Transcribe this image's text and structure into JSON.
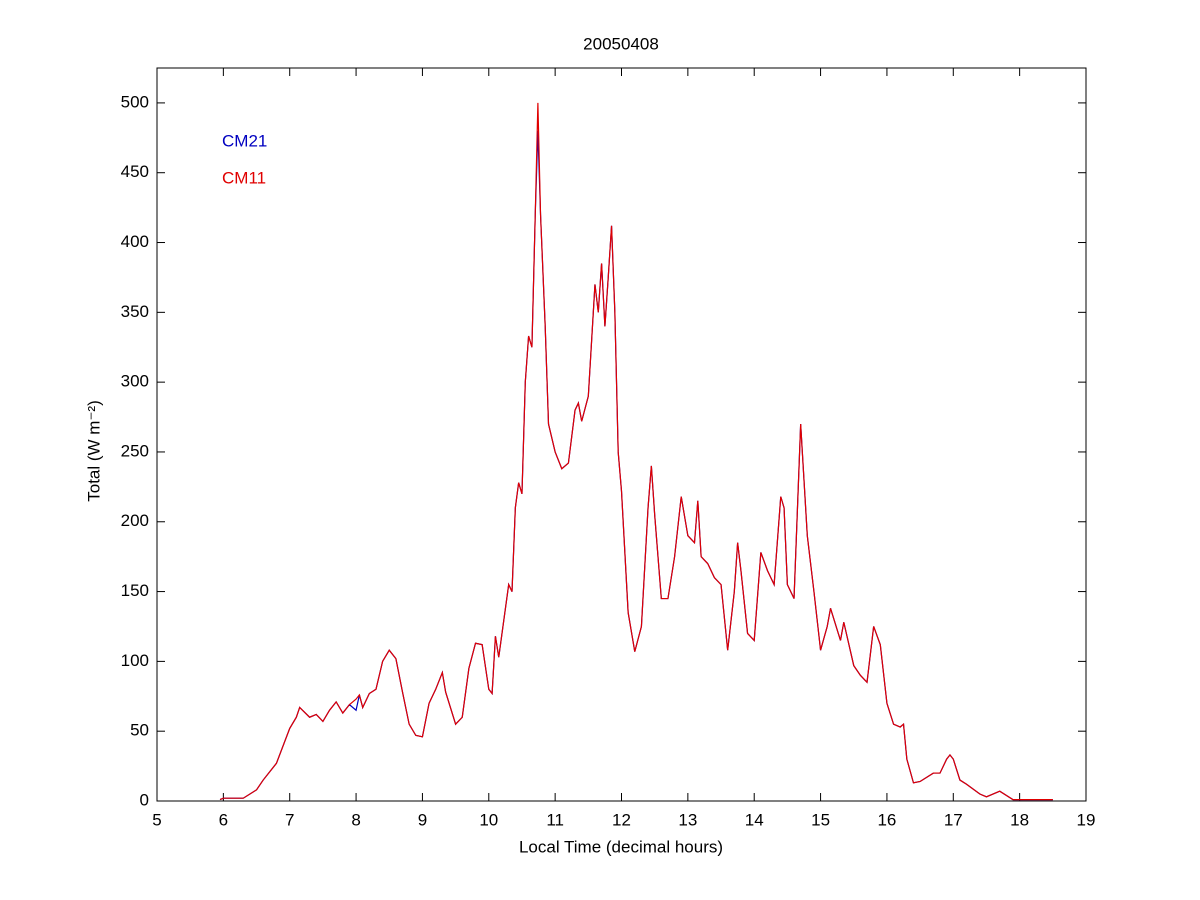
{
  "chart_data": {
    "type": "line",
    "title": "20050408",
    "xlabel": "Local Time (decimal hours)",
    "ylabel": "Total (W m⁻²)",
    "xlim": [
      5,
      19
    ],
    "xticks": [
      5,
      6,
      7,
      8,
      9,
      10,
      11,
      12,
      13,
      14,
      15,
      16,
      17,
      18,
      19
    ],
    "ylim": [
      0,
      525
    ],
    "yticks": [
      0,
      50,
      100,
      150,
      200,
      250,
      300,
      350,
      400,
      450,
      500
    ],
    "legend": "upper left",
    "x": [
      5.95,
      6.0,
      6.3,
      6.5,
      6.6,
      6.8,
      7.0,
      7.1,
      7.15,
      7.3,
      7.4,
      7.5,
      7.6,
      7.7,
      7.8,
      7.9,
      8.0,
      8.05,
      8.1,
      8.2,
      8.3,
      8.4,
      8.5,
      8.6,
      8.7,
      8.8,
      8.9,
      9.0,
      9.1,
      9.2,
      9.3,
      9.35,
      9.5,
      9.6,
      9.7,
      9.8,
      9.9,
      10.0,
      10.05,
      10.1,
      10.15,
      10.3,
      10.35,
      10.4,
      10.45,
      10.5,
      10.55,
      10.6,
      10.65,
      10.7,
      10.74,
      10.78,
      10.85,
      10.9,
      11.0,
      11.1,
      11.2,
      11.3,
      11.35,
      11.4,
      11.5,
      11.55,
      11.6,
      11.65,
      11.7,
      11.75,
      11.8,
      11.85,
      11.9,
      11.95,
      12.0,
      12.1,
      12.2,
      12.3,
      12.4,
      12.45,
      12.5,
      12.6,
      12.7,
      12.8,
      12.9,
      13.0,
      13.1,
      13.15,
      13.2,
      13.3,
      13.4,
      13.5,
      13.6,
      13.7,
      13.75,
      13.8,
      13.9,
      14.0,
      14.1,
      14.2,
      14.3,
      14.4,
      14.45,
      14.5,
      14.6,
      14.7,
      14.8,
      14.9,
      15.0,
      15.1,
      15.15,
      15.3,
      15.35,
      15.5,
      15.6,
      15.7,
      15.8,
      15.9,
      16.0,
      16.1,
      16.2,
      16.25,
      16.3,
      16.4,
      16.5,
      16.7,
      16.8,
      16.9,
      16.95,
      17.0,
      17.1,
      17.2,
      17.4,
      17.5,
      17.7,
      17.9,
      18.5
    ],
    "series": [
      {
        "name": "CM21",
        "color": "#0000c0",
        "values": [
          1,
          2,
          2,
          8,
          15,
          27,
          52,
          60,
          67,
          60,
          62,
          57,
          65,
          71,
          63,
          69,
          65,
          76,
          67,
          77,
          80,
          100,
          108,
          102,
          78,
          55,
          47,
          46,
          70,
          80,
          92,
          78,
          55,
          60,
          95,
          113,
          112,
          80,
          77,
          118,
          103,
          155,
          150,
          210,
          228,
          220,
          300,
          333,
          325,
          420,
          480,
          420,
          340,
          270,
          250,
          238,
          242,
          280,
          285,
          272,
          290,
          330,
          370,
          350,
          385,
          340,
          375,
          412,
          350,
          250,
          222,
          135,
          107,
          125,
          210,
          240,
          205,
          145,
          145,
          175,
          218,
          190,
          185,
          215,
          175,
          170,
          160,
          155,
          108,
          150,
          185,
          165,
          120,
          115,
          178,
          165,
          155,
          218,
          210,
          155,
          145,
          270,
          190,
          150,
          108,
          125,
          138,
          115,
          128,
          97,
          90,
          85,
          125,
          112,
          70,
          55,
          53,
          55,
          30,
          13,
          14,
          20,
          20,
          30,
          33,
          30,
          15,
          12,
          5,
          3,
          7,
          1,
          1
        ]
      },
      {
        "name": "CM11",
        "color": "#e00000",
        "values": [
          1,
          2,
          2,
          8,
          15,
          27,
          52,
          60,
          67,
          60,
          62,
          57,
          65,
          71,
          63,
          69,
          73,
          76,
          67,
          77,
          80,
          100,
          108,
          102,
          78,
          55,
          47,
          46,
          70,
          80,
          92,
          78,
          55,
          60,
          95,
          113,
          112,
          80,
          77,
          118,
          103,
          155,
          150,
          210,
          228,
          220,
          300,
          333,
          325,
          420,
          500,
          420,
          340,
          270,
          250,
          238,
          242,
          280,
          285,
          272,
          290,
          330,
          370,
          350,
          385,
          340,
          375,
          412,
          350,
          250,
          222,
          135,
          107,
          125,
          210,
          240,
          205,
          145,
          145,
          175,
          218,
          190,
          185,
          215,
          175,
          170,
          160,
          155,
          108,
          150,
          185,
          165,
          120,
          115,
          178,
          165,
          155,
          218,
          210,
          155,
          145,
          270,
          190,
          150,
          108,
          125,
          138,
          115,
          128,
          97,
          90,
          85,
          125,
          112,
          70,
          55,
          53,
          55,
          30,
          13,
          14,
          20,
          20,
          30,
          33,
          30,
          15,
          12,
          5,
          3,
          7,
          1,
          1
        ]
      }
    ]
  }
}
